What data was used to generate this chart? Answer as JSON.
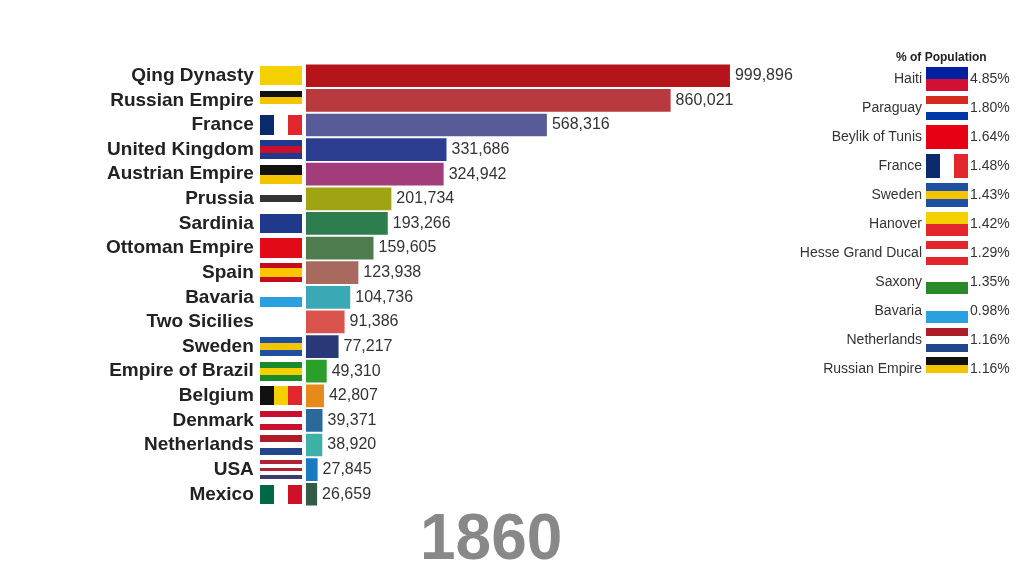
{
  "chart_data": [
    {
      "type": "bar",
      "orientation": "horizontal",
      "tick_labels": "y",
      "categories": [
        "Qing Dynasty",
        "Russian Empire",
        "France",
        "United Kingdom",
        "Austrian Empire",
        "Prussia",
        "Sardinia",
        "Ottoman Empire",
        "Spain",
        "Bavaria",
        "Two Sicilies",
        "Sweden",
        "Empire of Brazil",
        "Belgium",
        "Denmark",
        "Netherlands",
        "USA",
        "Mexico"
      ],
      "values": [
        999896,
        860021,
        568316,
        331686,
        324942,
        201734,
        193266,
        159605,
        123938,
        104736,
        91386,
        77217,
        49310,
        42807,
        39371,
        38920,
        27845,
        26659
      ],
      "value_labels": [
        "999,896",
        "860,021",
        "568,316",
        "331,686",
        "324,942",
        "201,734",
        "193,266",
        "159,605",
        "123,938",
        "104,736",
        "91,386",
        "77,217",
        "49,310",
        "42,807",
        "39,371",
        "38,920",
        "27,845",
        "26,659"
      ],
      "colors": [
        "#b5141a",
        "#b83a3e",
        "#585b97",
        "#2a3d8f",
        "#a23c7a",
        "#9ea412",
        "#2e7d4f",
        "#4f7c4f",
        "#a86a5e",
        "#3aa8b5",
        "#d9544d",
        "#283878",
        "#2aa02a",
        "#e68a1a",
        "#2a6a9a",
        "#3fb0a8",
        "#1a7ac0",
        "#355a45"
      ],
      "annotations": [
        "1860"
      ]
    },
    {
      "type": "other",
      "title": "% of Population",
      "categories": [
        "Haiti",
        "Paraguay",
        "Beylik of Tunis",
        "France",
        "Sweden",
        "Hanover",
        "Hesse Grand Ducal",
        "Saxony",
        "Bavaria",
        "Netherlands",
        "Russian Empire"
      ],
      "value_labels": [
        "4.85%",
        "1.80%",
        "1.64%",
        "1.48%",
        "1.43%",
        "1.42%",
        "1.29%",
        "1.35%",
        "0.98%",
        "1.16%",
        "1.16%"
      ]
    }
  ]
}
